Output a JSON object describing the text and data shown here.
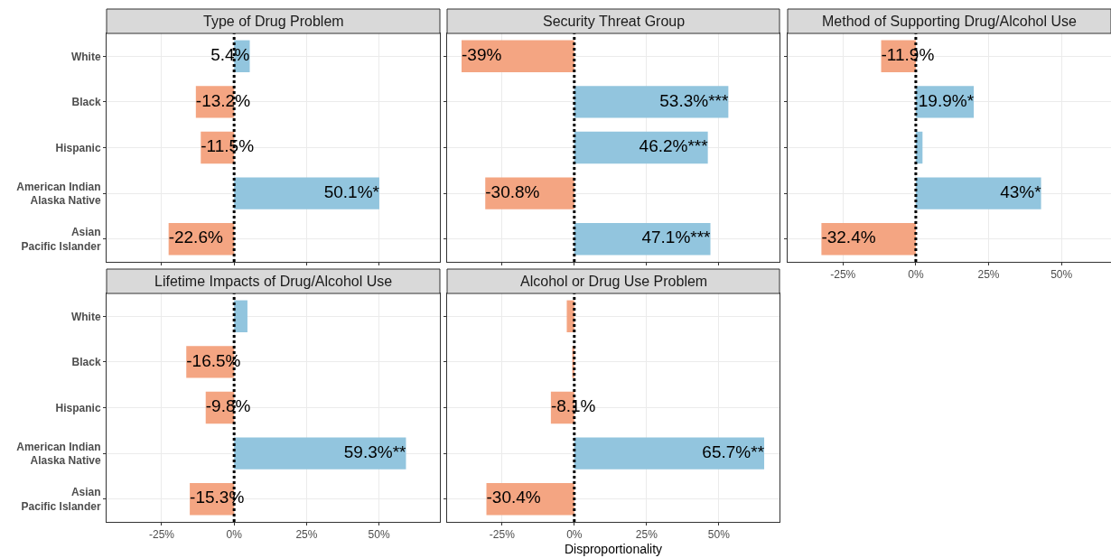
{
  "chart_data": [
    {
      "type": "bar",
      "orientation": "horizontal",
      "title": "Type of Drug Problem",
      "categories": [
        "White",
        "Black",
        "Hispanic",
        "American Indian\nAlaska Native",
        "Asian\nPacific Islander"
      ],
      "values": [
        5.4,
        -13.2,
        -11.5,
        50.1,
        -22.6
      ],
      "colors": [
        "#92c5de",
        "#f4a582",
        "#f4a582",
        "#92c5de",
        "#f4a582"
      ],
      "value_labels": [
        "5.4%",
        "-13.2%",
        "-11.5%",
        "50.1%*",
        "-22.6%"
      ],
      "xlim": [
        -44,
        71
      ],
      "xticks": [
        {
          "value": -25,
          "label": null
        },
        {
          "value": 0,
          "label": null
        },
        {
          "value": 25,
          "label": null
        },
        {
          "value": 50,
          "label": null
        }
      ],
      "ref_lines": [
        {
          "axis": "x",
          "value": 0,
          "color": "#000000",
          "line_style": "dotted"
        }
      ],
      "grid": true,
      "tick_labels": "y"
    },
    {
      "type": "bar",
      "orientation": "horizontal",
      "title": "Security Threat Group",
      "categories": [
        null,
        null,
        null,
        null,
        null
      ],
      "values": [
        -39,
        53.3,
        46.2,
        -30.8,
        47.1
      ],
      "colors": [
        "#f4a582",
        "#92c5de",
        "#92c5de",
        "#f4a582",
        "#92c5de"
      ],
      "value_labels": [
        "-39%",
        "53.3%***",
        "46.2%***",
        "-30.8%",
        "47.1%***"
      ],
      "xlim": [
        -44,
        71
      ],
      "xticks": [
        {
          "value": -25,
          "label": null
        },
        {
          "value": 0,
          "label": null
        },
        {
          "value": 25,
          "label": null
        },
        {
          "value": 50,
          "label": null
        }
      ],
      "ref_lines": [
        {
          "axis": "x",
          "value": 0,
          "color": "#000000",
          "line_style": "dotted"
        }
      ],
      "grid": true,
      "tick_labels": false
    },
    {
      "type": "bar",
      "orientation": "horizontal",
      "title": "Method of Supporting Drug/Alcohol Use",
      "categories": [
        null,
        null,
        null,
        null,
        null
      ],
      "values": [
        -11.9,
        19.9,
        2.3,
        43,
        -32.4
      ],
      "colors": [
        "#f4a582",
        "#92c5de",
        "#92c5de",
        "#92c5de",
        "#f4a582"
      ],
      "value_labels": [
        "-11.9%",
        "19.9%*",
        null,
        "43%*",
        "-32.4%"
      ],
      "xlim": [
        -44,
        67
      ],
      "xticks": [
        {
          "value": -25,
          "label": "-25%"
        },
        {
          "value": 0,
          "label": "0%"
        },
        {
          "value": 25,
          "label": "25%"
        },
        {
          "value": 50,
          "label": "50%"
        }
      ],
      "ref_lines": [
        {
          "axis": "x",
          "value": 0,
          "color": "#000000",
          "line_style": "dotted"
        }
      ],
      "grid": true,
      "tick_labels": "x"
    },
    {
      "type": "bar",
      "orientation": "horizontal",
      "title": "Lifetime Impacts of Drug/Alcohol Use",
      "categories": [
        "White",
        "Black",
        "Hispanic",
        "American Indian\nAlaska Native",
        "Asian\nPacific Islander"
      ],
      "values": [
        4.6,
        -16.5,
        -9.8,
        59.3,
        -15.3
      ],
      "colors": [
        "#92c5de",
        "#f4a582",
        "#f4a582",
        "#92c5de",
        "#f4a582"
      ],
      "value_labels": [
        null,
        "-16.5%",
        "-9.8%",
        "59.3%**",
        "-15.3%"
      ],
      "xlim": [
        -44,
        71
      ],
      "xticks": [
        {
          "value": -25,
          "label": "-25%"
        },
        {
          "value": 0,
          "label": "0%"
        },
        {
          "value": 25,
          "label": "25%"
        },
        {
          "value": 50,
          "label": "50%"
        }
      ],
      "ref_lines": [
        {
          "axis": "x",
          "value": 0,
          "color": "#000000",
          "line_style": "dotted"
        }
      ],
      "grid": true
    },
    {
      "type": "bar",
      "orientation": "horizontal",
      "title": "Alcohol or Drug Use Problem",
      "xlabel": "Disproportionality",
      "categories": [
        null,
        null,
        null,
        null,
        null
      ],
      "values": [
        -2.6,
        -0.7,
        -8.1,
        65.7,
        -30.4
      ],
      "colors": [
        "#f4a582",
        "#f4a582",
        "#f4a582",
        "#92c5de",
        "#f4a582"
      ],
      "value_labels": [
        null,
        null,
        "-8.1%",
        "65.7%**",
        "-30.4%"
      ],
      "xlim": [
        -44,
        71
      ],
      "xticks": [
        {
          "value": -25,
          "label": "-25%"
        },
        {
          "value": 0,
          "label": "0%"
        },
        {
          "value": 25,
          "label": "25%"
        },
        {
          "value": 50,
          "label": "50%"
        }
      ],
      "ref_lines": [
        {
          "axis": "x",
          "value": 0,
          "color": "#000000",
          "line_style": "dotted"
        }
      ],
      "grid": true,
      "tick_labels": "x"
    }
  ]
}
